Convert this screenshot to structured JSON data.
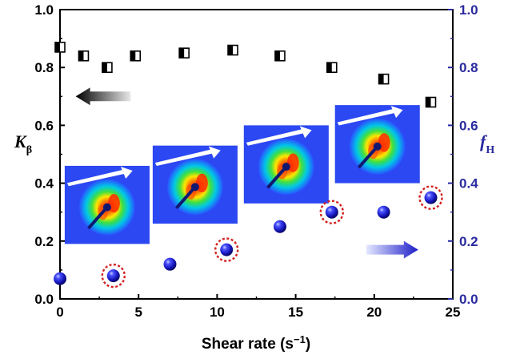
{
  "chart_data": {
    "type": "scatter",
    "xlabel": "Shear rate (s",
    "xlabel_sup": "−1",
    "xlabel_close": ")",
    "ylabel_left": "K",
    "ylabel_left_sub": "β",
    "ylabel_right": "f",
    "ylabel_right_sub": "H",
    "xlim": [
      0,
      25
    ],
    "ylim_left": [
      0.0,
      1.0
    ],
    "ylim_right": [
      0.0,
      1.0
    ],
    "x_ticks": [
      "0",
      "5",
      "10",
      "15",
      "20",
      "25"
    ],
    "y_ticks_left": [
      "0.0",
      "0.2",
      "0.4",
      "0.6",
      "0.8",
      "1.0"
    ],
    "y_ticks_right": [
      "0.0",
      "0.2",
      "0.4",
      "0.6",
      "0.8",
      "1.0"
    ],
    "series": [
      {
        "name": "K_beta",
        "axis": "left",
        "marker": "half-filled-square",
        "color": "#000000",
        "x": [
          0,
          1.5,
          3,
          4.8,
          7.9,
          11,
          14,
          17.3,
          20.6,
          23.6
        ],
        "y": [
          0.87,
          0.84,
          0.8,
          0.84,
          0.85,
          0.86,
          0.84,
          0.8,
          0.76,
          0.68
        ]
      },
      {
        "name": "f_H",
        "axis": "right",
        "marker": "sphere",
        "color": "#1e1ec8",
        "x": [
          0,
          3.4,
          7,
          10.6,
          14,
          17.3,
          20.6,
          23.6
        ],
        "y": [
          0.07,
          0.08,
          0.12,
          0.17,
          0.25,
          0.3,
          0.3,
          0.35
        ],
        "circled": [
          false,
          true,
          false,
          true,
          false,
          true,
          false,
          true
        ]
      }
    ],
    "inset_patterns": [
      {
        "x": 3.4,
        "x0": 0.3,
        "x1": 5.7,
        "y0": 0.19,
        "y1": 0.46
      },
      {
        "x": 10.6,
        "x0": 5.9,
        "x1": 11.3,
        "y0": 0.26,
        "y1": 0.53
      },
      {
        "x": 17.3,
        "x0": 11.7,
        "x1": 17.1,
        "y0": 0.33,
        "y1": 0.6
      },
      {
        "x": 23.6,
        "x0": 17.5,
        "x1": 22.9,
        "y0": 0.4,
        "y1": 0.67
      }
    ],
    "arrows": [
      {
        "name": "kbeta-axis-arrow",
        "direction": "left",
        "tail_x": 4.5,
        "head_x": 1.0,
        "y": 0.7,
        "color": "#000000"
      },
      {
        "name": "fh-axis-arrow",
        "direction": "right",
        "tail_x": 19.5,
        "head_x": 22.8,
        "y": 0.17,
        "color": "#1e1ec8"
      }
    ]
  }
}
